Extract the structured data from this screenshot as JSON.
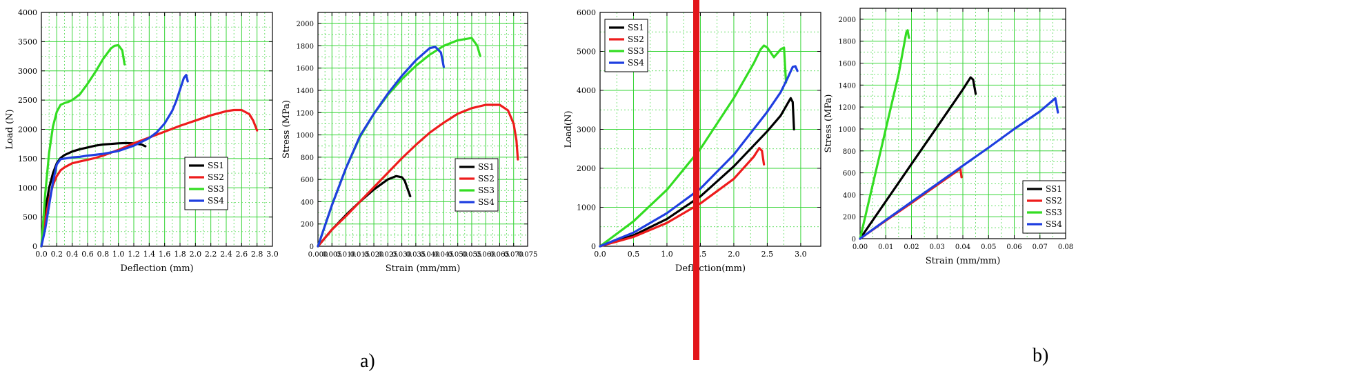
{
  "colors": {
    "SS1": "#000000",
    "SS2": "#ee1c1c",
    "SS3": "#33dd22",
    "SS4": "#1f3fe0",
    "grid": "#36d436",
    "divider": "#e3161b"
  },
  "panel_labels": {
    "a": "a)",
    "b": "b)"
  },
  "chart_data": [
    {
      "type": "line",
      "xlabel": "Deflection (mm)",
      "ylabel": "Load (N)",
      "xlim": [
        0,
        3.0
      ],
      "ylim": [
        0,
        4000
      ],
      "xticks": [
        "0.0",
        "0.2",
        "0.4",
        "0.6",
        "0.8",
        "1.0",
        "1.2",
        "1.4",
        "1.6",
        "1.8",
        "2.0",
        "2.2",
        "2.4",
        "2.6",
        "2.8",
        "3.0"
      ],
      "yticks": [
        "0",
        "500",
        "1000",
        "1500",
        "2000",
        "2500",
        "3000",
        "3500",
        "4000"
      ],
      "legend_position": "center-right",
      "grid": true,
      "series": [
        {
          "name": "SS1",
          "x": [
            0,
            0.05,
            0.1,
            0.15,
            0.2,
            0.25,
            0.3,
            0.4,
            0.5,
            0.6,
            0.7,
            0.8,
            0.9,
            1.0,
            1.1,
            1.2,
            1.3,
            1.35
          ],
          "y": [
            0,
            600,
            1000,
            1250,
            1420,
            1510,
            1560,
            1620,
            1660,
            1690,
            1720,
            1740,
            1750,
            1760,
            1765,
            1760,
            1740,
            1710
          ]
        },
        {
          "name": "SS2",
          "x": [
            0,
            0.05,
            0.1,
            0.15,
            0.2,
            0.25,
            0.3,
            0.4,
            0.5,
            0.6,
            0.7,
            0.8,
            1.0,
            1.2,
            1.4,
            1.6,
            1.8,
            2.0,
            2.2,
            2.4,
            2.5,
            2.6,
            2.7,
            2.75,
            2.8
          ],
          "y": [
            0,
            450,
            800,
            1050,
            1200,
            1300,
            1350,
            1420,
            1450,
            1480,
            1510,
            1550,
            1650,
            1760,
            1860,
            1960,
            2060,
            2150,
            2240,
            2310,
            2330,
            2330,
            2260,
            2150,
            1980
          ]
        },
        {
          "name": "SS3",
          "x": [
            0,
            0.05,
            0.1,
            0.15,
            0.2,
            0.25,
            0.3,
            0.35,
            0.4,
            0.5,
            0.6,
            0.7,
            0.8,
            0.9,
            0.95,
            1.0,
            1.05,
            1.08
          ],
          "y": [
            0,
            900,
            1600,
            2050,
            2300,
            2420,
            2450,
            2470,
            2500,
            2600,
            2780,
            2980,
            3200,
            3380,
            3430,
            3440,
            3350,
            3110
          ]
        },
        {
          "name": "SS4",
          "x": [
            0,
            0.05,
            0.1,
            0.15,
            0.2,
            0.25,
            0.3,
            0.4,
            0.5,
            0.6,
            0.8,
            1.0,
            1.2,
            1.4,
            1.5,
            1.6,
            1.7,
            1.75,
            1.8,
            1.85,
            1.88,
            1.9
          ],
          "y": [
            0,
            300,
            700,
            1100,
            1400,
            1490,
            1500,
            1520,
            1530,
            1550,
            1580,
            1630,
            1720,
            1850,
            1950,
            2100,
            2320,
            2480,
            2680,
            2880,
            2930,
            2820
          ]
        }
      ]
    },
    {
      "type": "line",
      "xlabel": "Strain (mm/mm)",
      "ylabel": "Stress (MPa)",
      "xlim": [
        0,
        0.075
      ],
      "ylim": [
        0,
        2100
      ],
      "xticks": [
        "0.000",
        "0.005",
        "0.010",
        "0.015",
        "0.020",
        "0.025",
        "0.030",
        "0.035",
        "0.040",
        "0.045",
        "0.050",
        "0.055",
        "0.060",
        "0.065",
        "0.070",
        "0.075"
      ],
      "yticks": [
        "0",
        "200",
        "400",
        "600",
        "800",
        "1000",
        "1200",
        "1400",
        "1600",
        "1800",
        "2000"
      ],
      "legend_position": "bottom-right",
      "grid": true,
      "series": [
        {
          "name": "SS1",
          "x": [
            0,
            0.005,
            0.01,
            0.015,
            0.02,
            0.025,
            0.028,
            0.03,
            0.031,
            0.032,
            0.033
          ],
          "y": [
            0,
            150,
            280,
            400,
            510,
            600,
            630,
            620,
            590,
            520,
            450
          ]
        },
        {
          "name": "SS2",
          "x": [
            0,
            0.005,
            0.01,
            0.015,
            0.02,
            0.025,
            0.03,
            0.035,
            0.04,
            0.045,
            0.05,
            0.055,
            0.06,
            0.065,
            0.068,
            0.07,
            0.071,
            0.0715
          ],
          "y": [
            0,
            150,
            270,
            400,
            530,
            660,
            790,
            910,
            1020,
            1110,
            1190,
            1240,
            1270,
            1270,
            1220,
            1100,
            950,
            780
          ]
        },
        {
          "name": "SS3",
          "x": [
            0,
            0.005,
            0.01,
            0.015,
            0.02,
            0.025,
            0.03,
            0.035,
            0.04,
            0.045,
            0.05,
            0.055,
            0.057,
            0.058
          ],
          "y": [
            0,
            370,
            700,
            980,
            1190,
            1360,
            1500,
            1620,
            1720,
            1800,
            1850,
            1870,
            1800,
            1710
          ]
        },
        {
          "name": "SS4",
          "x": [
            0,
            0.005,
            0.01,
            0.015,
            0.02,
            0.025,
            0.03,
            0.035,
            0.04,
            0.042,
            0.044,
            0.045
          ],
          "y": [
            0,
            370,
            700,
            990,
            1190,
            1370,
            1530,
            1670,
            1780,
            1790,
            1740,
            1610
          ]
        }
      ]
    },
    {
      "type": "line",
      "xlabel": "Deflection(mm)",
      "ylabel": "Load(N)",
      "xlim": [
        0,
        3.3
      ],
      "ylim": [
        0,
        6000
      ],
      "xticks": [
        "0.0",
        "0.5",
        "1.0",
        "1.5",
        "2.0",
        "2.5",
        "3.0"
      ],
      "yticks": [
        "0",
        "1000",
        "2000",
        "3000",
        "4000",
        "5000",
        "6000"
      ],
      "legend_position": "top-left",
      "grid": true,
      "series": [
        {
          "name": "SS1",
          "x": [
            0,
            0.5,
            1.0,
            1.5,
            2.0,
            2.5,
            2.7,
            2.8,
            2.85,
            2.88,
            2.9
          ],
          "y": [
            0,
            280,
            700,
            1280,
            2050,
            2950,
            3350,
            3650,
            3800,
            3700,
            3000
          ]
        },
        {
          "name": "SS2",
          "x": [
            0,
            0.5,
            1.0,
            1.5,
            2.0,
            2.3,
            2.38,
            2.42,
            2.45
          ],
          "y": [
            0,
            240,
            600,
            1100,
            1730,
            2300,
            2520,
            2450,
            2100
          ]
        },
        {
          "name": "SS3",
          "x": [
            0,
            0.5,
            1.0,
            1.5,
            2.0,
            2.3,
            2.4,
            2.45,
            2.5,
            2.6,
            2.7,
            2.75,
            2.78
          ],
          "y": [
            0,
            640,
            1450,
            2500,
            3800,
            4700,
            5050,
            5150,
            5100,
            4850,
            5050,
            5100,
            4200
          ]
        },
        {
          "name": "SS4",
          "x": [
            0,
            0.5,
            1.0,
            1.5,
            2.0,
            2.5,
            2.7,
            2.8,
            2.88,
            2.92,
            2.95
          ],
          "y": [
            0,
            350,
            850,
            1480,
            2350,
            3450,
            3950,
            4300,
            4600,
            4620,
            4500
          ]
        }
      ]
    },
    {
      "type": "line",
      "xlabel": "Strain (mm/mm)",
      "ylabel": "Stress (MPa)",
      "xlim": [
        0,
        0.08
      ],
      "ylim": [
        0,
        2100
      ],
      "xticks": [
        "0.00",
        "0.01",
        "0.02",
        "0.03",
        "0.04",
        "0.05",
        "0.06",
        "0.07",
        "0.08"
      ],
      "yticks": [
        "0",
        "200",
        "400",
        "600",
        "800",
        "1000",
        "1200",
        "1400",
        "1600",
        "1800",
        "2000"
      ],
      "legend_position": "bottom-right",
      "grid": true,
      "series": [
        {
          "name": "SS1",
          "x": [
            0,
            0.01,
            0.02,
            0.03,
            0.04,
            0.043,
            0.044,
            0.045
          ],
          "y": [
            0,
            340,
            680,
            1020,
            1360,
            1470,
            1450,
            1320
          ]
        },
        {
          "name": "SS2",
          "x": [
            0,
            0.01,
            0.02,
            0.03,
            0.038,
            0.039,
            0.0395
          ],
          "y": [
            0,
            165,
            325,
            490,
            620,
            640,
            560
          ]
        },
        {
          "name": "SS3",
          "x": [
            0,
            0.005,
            0.01,
            0.015,
            0.018,
            0.0185,
            0.019
          ],
          "y": [
            0,
            500,
            1000,
            1500,
            1880,
            1900,
            1830
          ]
        },
        {
          "name": "SS4",
          "x": [
            0,
            0.01,
            0.02,
            0.03,
            0.04,
            0.05,
            0.06,
            0.07,
            0.076,
            0.077
          ],
          "y": [
            0,
            170,
            335,
            500,
            665,
            830,
            1000,
            1160,
            1280,
            1150
          ]
        }
      ]
    }
  ]
}
